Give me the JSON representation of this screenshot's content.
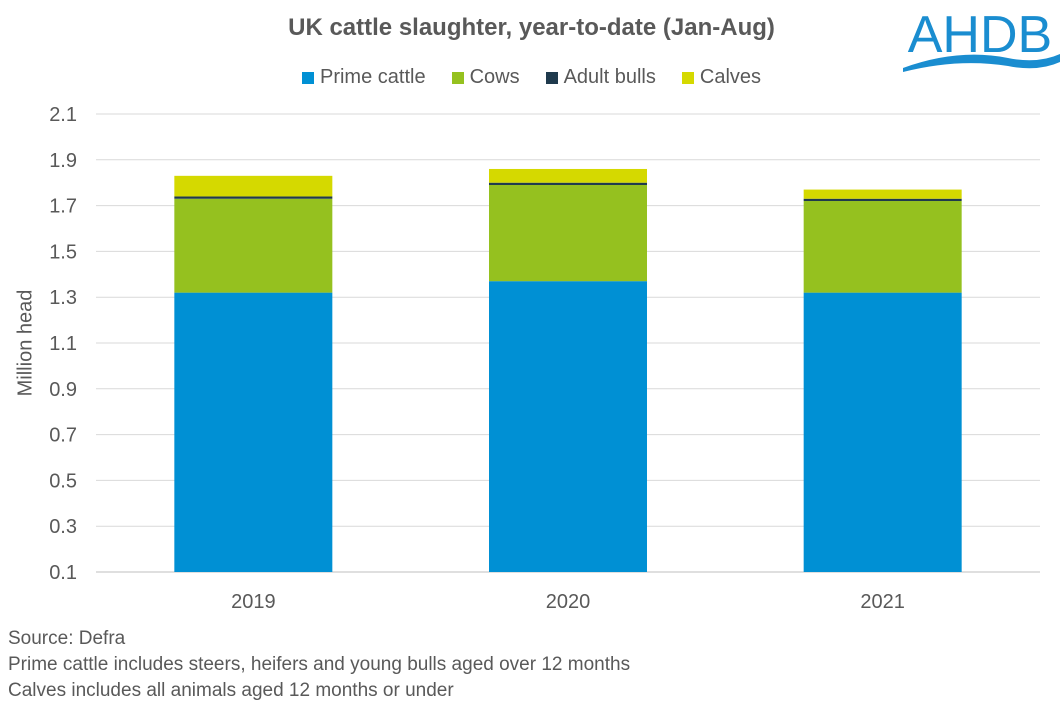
{
  "chart_data": {
    "type": "bar",
    "stacked": true,
    "title": "UK cattle slaughter, year-to-date (Jan-Aug)",
    "xlabel": "",
    "ylabel": "Million head",
    "ylim": [
      0.1,
      2.1
    ],
    "yticks": [
      0.1,
      0.3,
      0.5,
      0.7,
      0.9,
      1.1,
      1.3,
      1.5,
      1.7,
      1.9,
      2.1
    ],
    "ytick_labels": [
      "0.1",
      "0.3",
      "0.5",
      "0.7",
      "0.9",
      "1.1",
      "1.3",
      "1.5",
      "1.7",
      "1.9",
      "2.1"
    ],
    "grid": true,
    "legend_position": "top",
    "categories": [
      "2019",
      "2020",
      "2021"
    ],
    "series": [
      {
        "name": "Prime cattle",
        "color": "#0090D4",
        "values": [
          1.32,
          1.37,
          1.32
        ]
      },
      {
        "name": "Cows",
        "color": "#95C11F",
        "values": [
          0.41,
          0.42,
          0.4
        ]
      },
      {
        "name": "Adult bulls",
        "color": "#1F3A4D",
        "values": [
          0.01,
          0.01,
          0.01
        ]
      },
      {
        "name": "Calves",
        "color": "#D5D900",
        "values": [
          0.09,
          0.06,
          0.04
        ]
      }
    ]
  },
  "logo": {
    "text": "AHDB",
    "color": "#1A8DD0"
  },
  "notes": [
    "Source: Defra",
    "Prime cattle includes steers, heifers and young bulls aged over 12 months",
    "Calves includes all animals aged 12 months or under"
  ]
}
